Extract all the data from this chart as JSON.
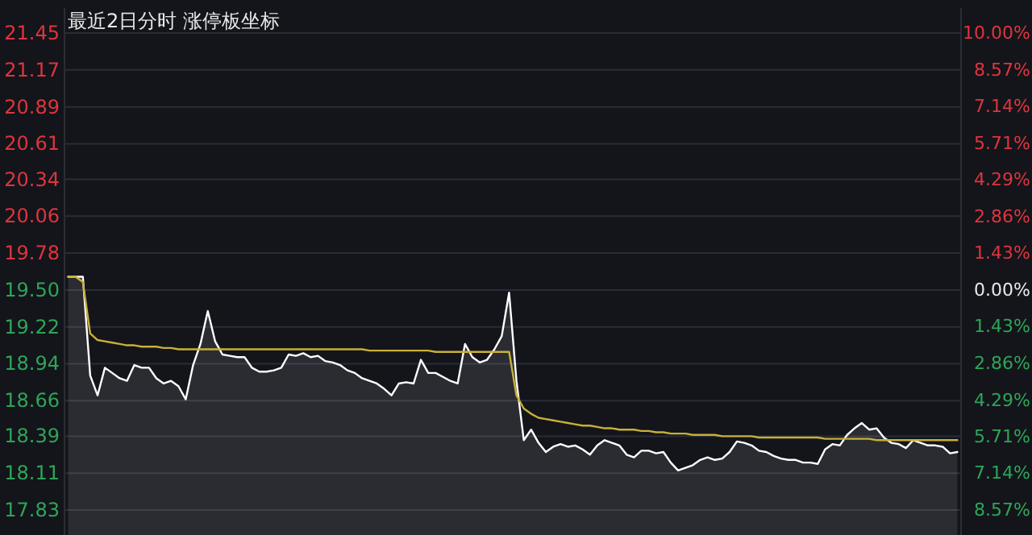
{
  "chart_data": {
    "type": "area",
    "title": "最近2日分时 涨停板坐标",
    "categories": [
      null,
      null,
      null,
      null,
      null,
      null,
      null,
      null,
      null,
      null,
      null,
      null,
      null,
      null,
      null,
      null,
      null,
      null,
      null,
      null,
      null,
      null,
      null,
      null,
      null,
      null,
      null,
      null,
      null,
      null,
      null,
      null,
      null,
      null,
      null,
      null,
      null,
      null,
      null,
      null,
      null,
      null,
      null,
      null,
      null,
      null,
      null,
      null,
      null,
      null,
      null,
      null,
      null,
      null,
      null,
      null,
      null,
      null,
      null,
      null,
      null,
      null,
      null,
      null,
      null,
      null,
      null,
      null,
      null,
      null,
      null,
      null,
      null,
      null,
      null,
      null,
      null,
      null,
      null,
      null,
      null,
      null,
      null,
      null,
      null,
      null,
      null,
      null,
      null,
      null,
      null,
      null,
      null,
      null,
      null,
      null,
      null,
      null,
      null,
      null,
      null,
      null,
      null,
      null,
      null,
      null,
      null,
      null,
      null,
      null,
      null,
      null,
      null,
      null,
      null,
      null,
      null,
      null,
      null,
      null,
      null,
      null
    ],
    "series": [
      {
        "type": "area",
        "color": "#ffffff",
        "values": [
          19.6,
          19.6,
          19.6,
          18.85,
          18.7,
          18.91,
          18.87,
          18.83,
          18.81,
          18.93,
          18.91,
          18.91,
          18.83,
          18.79,
          18.81,
          18.77,
          18.67,
          18.93,
          19.09,
          19.34,
          19.11,
          19.01,
          19.0,
          18.99,
          18.99,
          18.91,
          18.88,
          18.88,
          18.89,
          18.91,
          19.01,
          19.0,
          19.02,
          18.99,
          19.0,
          18.96,
          18.95,
          18.93,
          18.89,
          18.87,
          18.83,
          18.81,
          18.79,
          18.75,
          18.7,
          18.79,
          18.8,
          18.79,
          18.97,
          18.87,
          18.87,
          18.84,
          18.81,
          18.79,
          19.09,
          18.99,
          18.95,
          18.97,
          19.05,
          19.15,
          19.48,
          18.81,
          18.36,
          18.44,
          18.34,
          18.27,
          18.31,
          18.33,
          18.31,
          18.32,
          18.29,
          18.25,
          18.32,
          18.36,
          18.34,
          18.32,
          18.25,
          18.23,
          18.28,
          18.28,
          18.26,
          18.27,
          18.19,
          18.13,
          18.15,
          18.17,
          18.21,
          18.23,
          18.21,
          18.22,
          18.27,
          18.35,
          18.34,
          18.32,
          18.28,
          18.27,
          18.24,
          18.22,
          18.21,
          18.21,
          18.19,
          18.19,
          18.18,
          18.29,
          18.33,
          18.32,
          18.4,
          18.45,
          18.49,
          18.44,
          18.45,
          18.38,
          18.34,
          18.33,
          18.3,
          18.36,
          18.34,
          18.32,
          18.32,
          18.31,
          18.26,
          18.27
        ]
      },
      {
        "type": "line",
        "color": "#c9b037",
        "values": [
          19.6,
          19.6,
          19.56,
          19.17,
          19.12,
          19.11,
          19.1,
          19.09,
          19.08,
          19.08,
          19.07,
          19.07,
          19.07,
          19.06,
          19.06,
          19.05,
          19.05,
          19.05,
          19.05,
          19.05,
          19.05,
          19.05,
          19.05,
          19.05,
          19.05,
          19.05,
          19.05,
          19.05,
          19.05,
          19.05,
          19.05,
          19.05,
          19.05,
          19.05,
          19.05,
          19.05,
          19.05,
          19.05,
          19.05,
          19.05,
          19.05,
          19.04,
          19.04,
          19.04,
          19.04,
          19.04,
          19.04,
          19.04,
          19.04,
          19.04,
          19.03,
          19.03,
          19.03,
          19.03,
          19.03,
          19.03,
          19.03,
          19.03,
          19.03,
          19.03,
          19.03,
          18.7,
          18.6,
          18.56,
          18.53,
          18.52,
          18.51,
          18.5,
          18.49,
          18.48,
          18.47,
          18.47,
          18.46,
          18.45,
          18.45,
          18.44,
          18.44,
          18.44,
          18.43,
          18.43,
          18.42,
          18.42,
          18.41,
          18.41,
          18.41,
          18.4,
          18.4,
          18.4,
          18.4,
          18.39,
          18.39,
          18.39,
          18.39,
          18.39,
          18.38,
          18.38,
          18.38,
          18.38,
          18.38,
          18.38,
          18.38,
          18.38,
          18.38,
          18.37,
          18.37,
          18.37,
          18.37,
          18.37,
          18.37,
          18.37,
          18.36,
          18.36,
          18.36,
          18.36,
          18.36,
          18.36,
          18.36,
          18.36,
          18.36,
          18.36,
          18.36,
          18.36
        ]
      }
    ],
    "ylim": [
      17.64,
      21.64
    ],
    "yticks": [
      {
        "value": 21.45,
        "label": "21.45"
      },
      {
        "value": 21.17,
        "label": "21.17"
      },
      {
        "value": 20.89,
        "label": "20.89"
      },
      {
        "value": 20.61,
        "label": "20.61"
      },
      {
        "value": 20.34,
        "label": "20.34"
      },
      {
        "value": 20.06,
        "label": "20.06"
      },
      {
        "value": 19.78,
        "label": "19.78"
      },
      {
        "value": 19.5,
        "label": "19.50"
      },
      {
        "value": 19.22,
        "label": "19.22"
      },
      {
        "value": 18.94,
        "label": "18.94"
      },
      {
        "value": 18.66,
        "label": "18.66"
      },
      {
        "value": 18.39,
        "label": "18.39"
      },
      {
        "value": 18.11,
        "label": "18.11"
      },
      {
        "value": 17.83,
        "label": "17.83"
      }
    ],
    "y2lim": [
      -9.54,
      10.97
    ],
    "y2ticks": [
      {
        "value": 10,
        "label": "10.00%"
      },
      {
        "value": 8.57,
        "label": "8.57%"
      },
      {
        "value": 7.14,
        "label": "7.14%"
      },
      {
        "value": 5.71,
        "label": "5.71%"
      },
      {
        "value": 4.29,
        "label": "4.29%"
      },
      {
        "value": 2.86,
        "label": "2.86%"
      },
      {
        "value": 1.43,
        "label": "1.43%"
      },
      {
        "value": 0,
        "label": "0.00%"
      },
      {
        "value": -1.43,
        "label": "1.43%"
      },
      {
        "value": -2.86,
        "label": "2.86%"
      },
      {
        "value": -4.29,
        "label": "4.29%"
      },
      {
        "value": -5.71,
        "label": "5.71%"
      },
      {
        "value": -7.14,
        "label": "7.14%"
      },
      {
        "value": -8.57,
        "label": "8.57%"
      }
    ],
    "grid": "y"
  }
}
